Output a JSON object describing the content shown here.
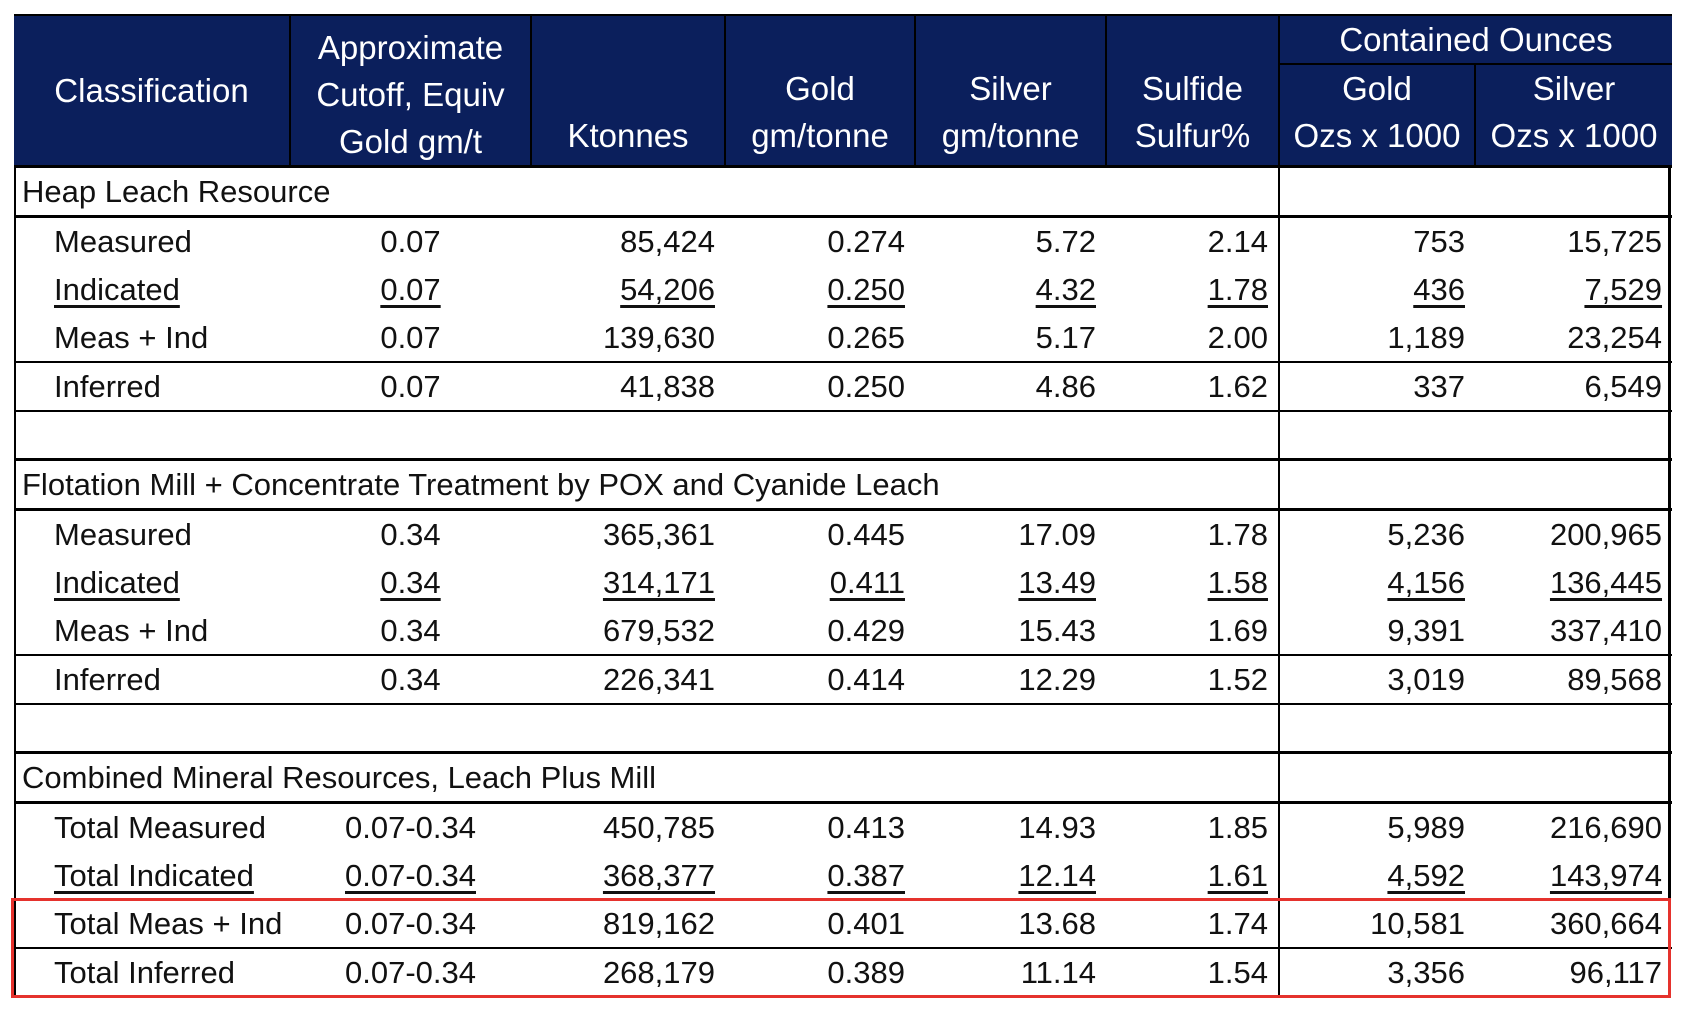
{
  "header": {
    "classification": "Classification",
    "cutoff": [
      "Approximate",
      "Cutoff, Equiv",
      "Gold gm/t"
    ],
    "ktonnes": "Ktonnes",
    "gold": [
      "Gold",
      "gm/tonne"
    ],
    "silver": [
      "Silver",
      "gm/tonne"
    ],
    "sulfide": [
      "Sulfide",
      "Sulfur%"
    ],
    "contained": "Contained Ounces",
    "contained_gold": [
      "Gold",
      "Ozs x 1000"
    ],
    "contained_silver": [
      "Silver",
      "Ozs x 1000"
    ]
  },
  "sections": [
    {
      "title": "Heap Leach Resource",
      "rows": [
        [
          "Measured",
          "0.07",
          "85,424",
          "0.274",
          "5.72",
          "2.14",
          "753",
          "15,725"
        ],
        [
          "Indicated",
          "0.07",
          "54,206",
          "0.250",
          "4.32",
          "1.78",
          "436",
          "7,529"
        ],
        [
          "Meas + Ind",
          "0.07",
          "139,630",
          "0.265",
          "5.17",
          "2.00",
          "1,189",
          "23,254"
        ],
        [
          "Inferred",
          "0.07",
          "41,838",
          "0.250",
          "4.86",
          "1.62",
          "337",
          "6,549"
        ]
      ]
    },
    {
      "title": "Flotation Mill + Concentrate Treatment by POX and Cyanide Leach",
      "rows": [
        [
          "Measured",
          "0.34",
          "365,361",
          "0.445",
          "17.09",
          "1.78",
          "5,236",
          "200,965"
        ],
        [
          "Indicated",
          "0.34",
          "314,171",
          "0.411",
          "13.49",
          "1.58",
          "4,156",
          "136,445"
        ],
        [
          "Meas + Ind",
          "0.34",
          "679,532",
          "0.429",
          "15.43",
          "1.69",
          "9,391",
          "337,410"
        ],
        [
          "Inferred",
          "0.34",
          "226,341",
          "0.414",
          "12.29",
          "1.52",
          "3,019",
          "89,568"
        ]
      ]
    },
    {
      "title": "Combined Mineral Resources, Leach Plus Mill",
      "rows": [
        [
          "Total Measured",
          "0.07-0.34",
          "450,785",
          "0.413",
          "14.93",
          "1.85",
          "5,989",
          "216,690"
        ],
        [
          "Total Indicated",
          "0.07-0.34",
          "368,377",
          "0.387",
          "12.14",
          "1.61",
          "4,592",
          "143,974"
        ],
        [
          "Total Meas + Ind",
          "0.07-0.34",
          "819,162",
          "0.401",
          "13.68",
          "1.74",
          "10,581",
          "360,664"
        ],
        [
          "Total Inferred",
          "0.07-0.34",
          "268,179",
          "0.389",
          "11.14",
          "1.54",
          "3,356",
          "96,117"
        ]
      ]
    }
  ],
  "colors": {
    "header_bg": "#0b1f5c",
    "header_text": "#ffffff",
    "highlight": "#e5322d"
  }
}
